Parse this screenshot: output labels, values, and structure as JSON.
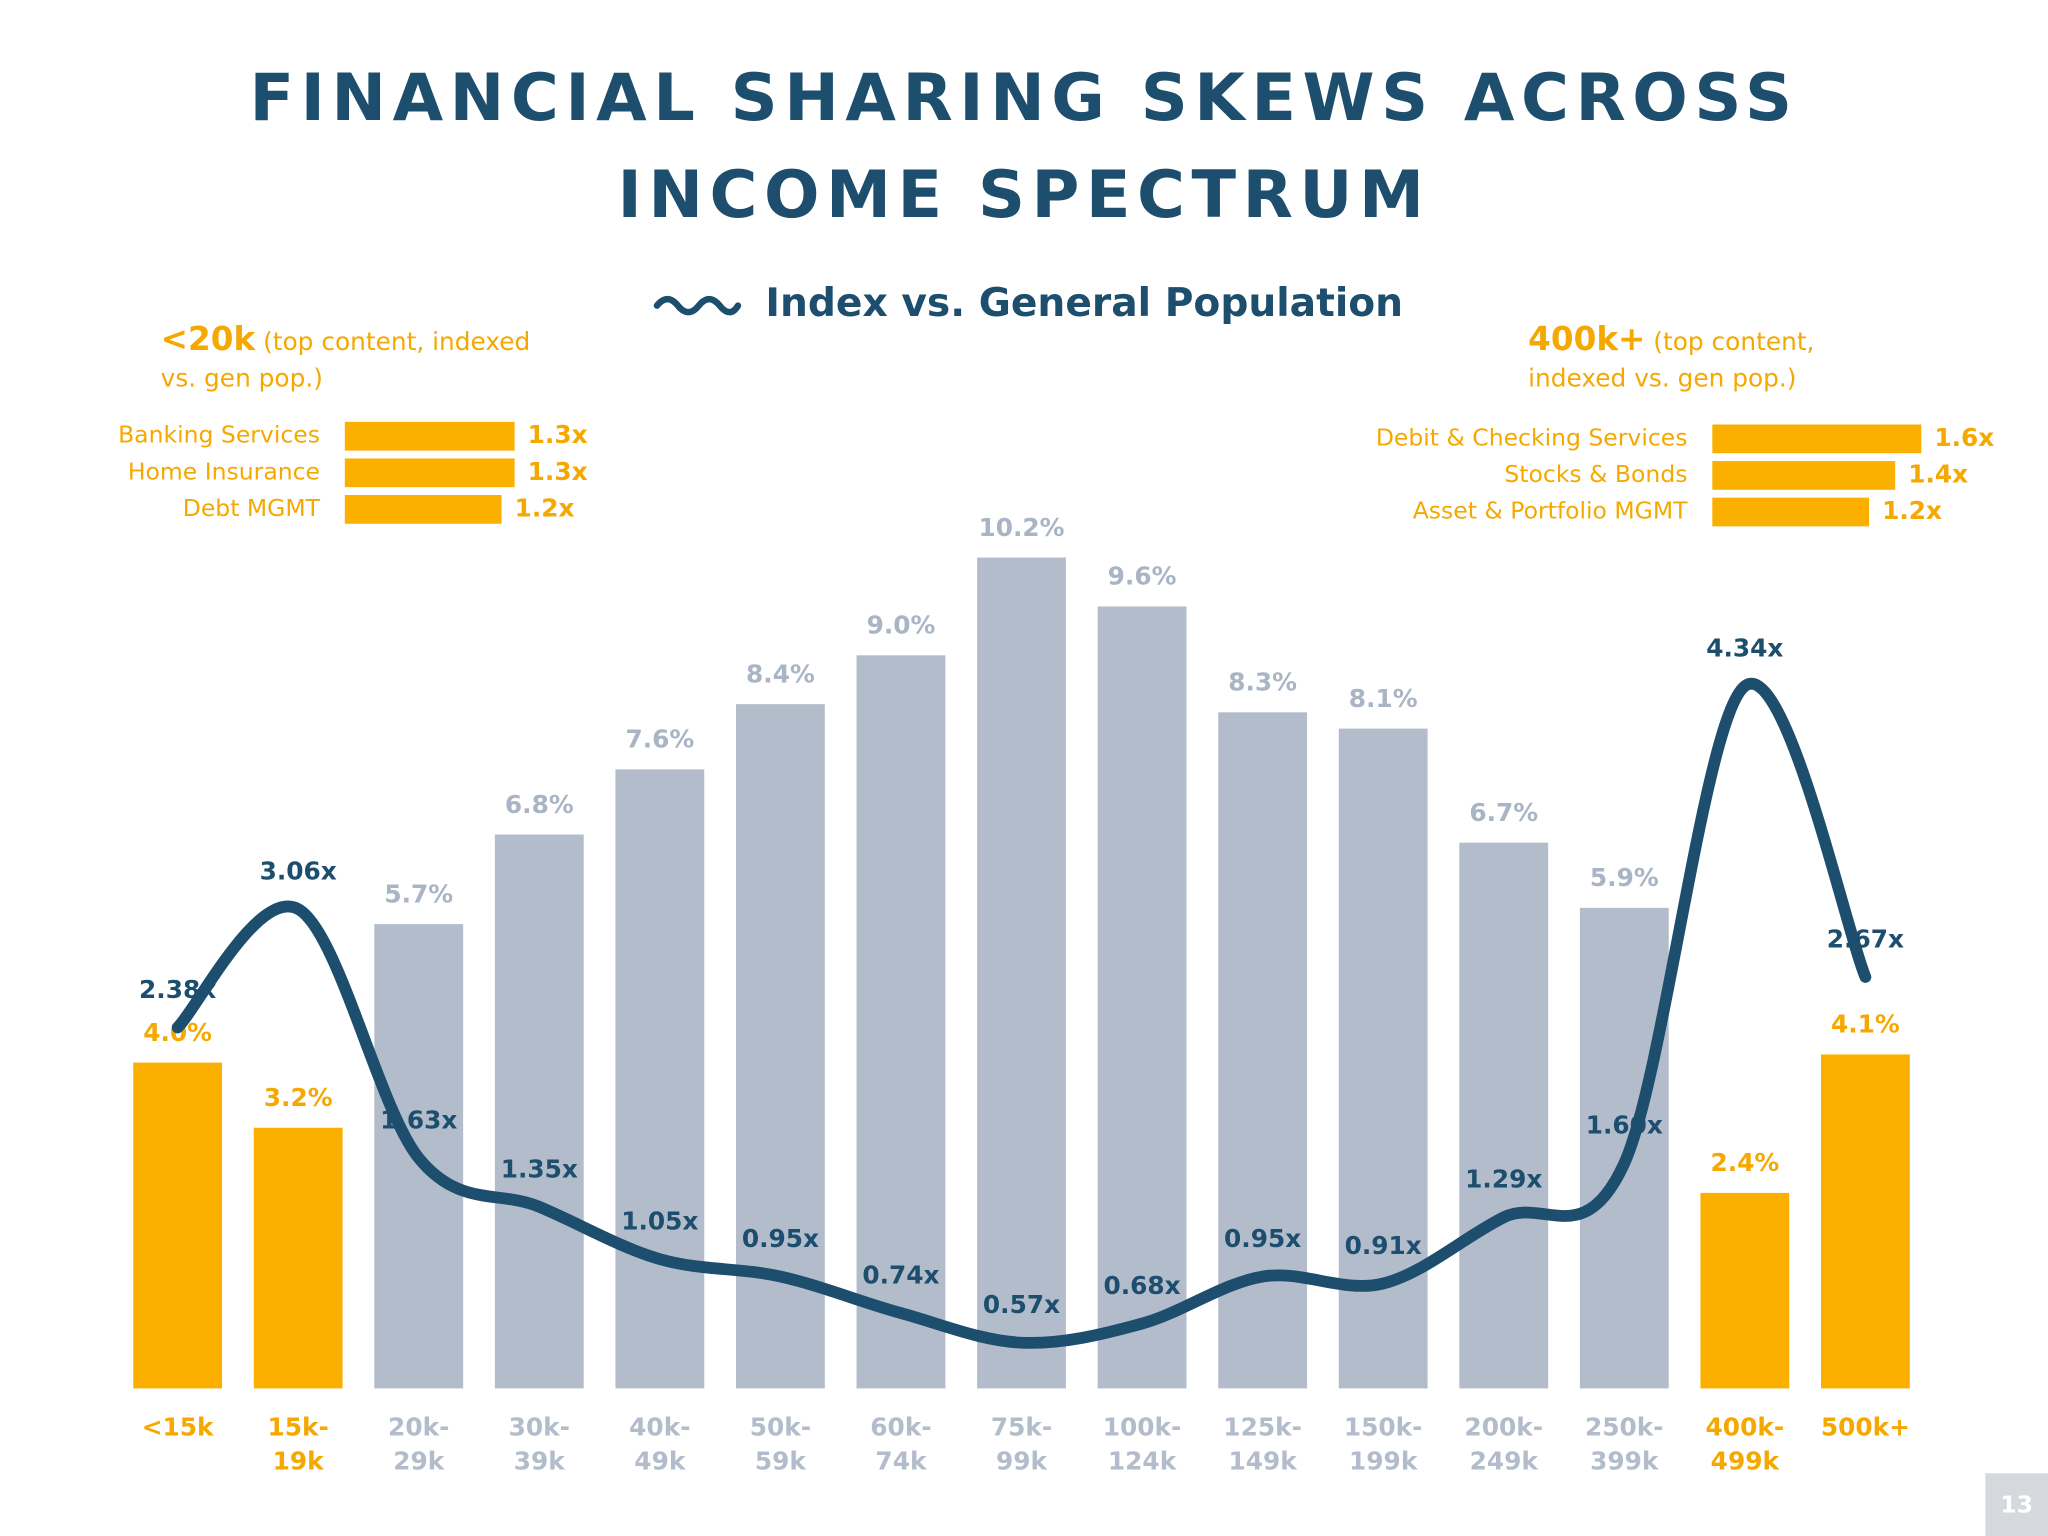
{
  "chart_data": [
    {
      "type": "bar",
      "title": "FINANCIAL SHARING SKEWS ACROSS INCOME SPECTRUM",
      "categories": [
        "<15k",
        "15k-19k",
        "20k-29k",
        "30k-39k",
        "40k-49k",
        "50k-59k",
        "60k-74k",
        "75k-99k",
        "100k-124k",
        "125k-149k",
        "150k-199k",
        "200k-249k",
        "250k-399k",
        "400k-499k",
        "500k+"
      ],
      "values": [
        4.0,
        3.2,
        5.7,
        6.8,
        7.6,
        8.4,
        9.0,
        10.2,
        9.6,
        8.3,
        8.1,
        6.7,
        5.9,
        2.4,
        4.1
      ],
      "value_labels": [
        "4.0%",
        "3.2%",
        "5.7%",
        "6.8%",
        "7.6%",
        "8.4%",
        "9.0%",
        "10.2%",
        "9.6%",
        "8.3%",
        "8.1%",
        "6.7%",
        "5.9%",
        "2.4%",
        "4.1%"
      ],
      "colors": [
        "#fbb000",
        "#fbb000",
        "#b2bccb",
        "#b2bccb",
        "#b2bccb",
        "#b2bccb",
        "#b2bccb",
        "#b2bccb",
        "#b2bccb",
        "#b2bccb",
        "#b2bccb",
        "#b2bccb",
        "#b2bccb",
        "#fbb000",
        "#fbb000"
      ],
      "ylim": [
        0,
        11
      ],
      "line": {
        "name": "Index vs. General Population",
        "color": "#1d4e6e",
        "values": [
          2.38,
          3.06,
          1.63,
          1.35,
          1.05,
          0.95,
          0.74,
          0.57,
          0.68,
          0.95,
          0.91,
          1.29,
          1.6,
          4.34,
          2.67
        ],
        "value_labels": [
          "2.38x",
          "3.06x",
          "1.63x",
          "1.35x",
          "1.05x",
          "0.95x",
          "0.74x",
          "0.57x",
          "0.68x",
          "0.95x",
          "0.91x",
          "1.29x",
          "1.60x",
          "4.34x",
          "2.67x"
        ],
        "y2lim": [
          0,
          4.8
        ]
      }
    },
    {
      "type": "hbar",
      "title": "<20k",
      "subtitle": "(top content, indexed vs. gen pop.)",
      "categories": [
        "Banking Services",
        "Home Insurance",
        "Debt MGMT"
      ],
      "values": [
        1.3,
        1.3,
        1.2
      ],
      "value_labels": [
        "1.3x",
        "1.3x",
        "1.2x"
      ],
      "color": "#fbb000"
    },
    {
      "type": "hbar",
      "title": "400k+",
      "subtitle": "(top content, indexed vs. gen pop.)",
      "categories": [
        "Debit & Checking Services",
        "Stocks & Bonds",
        "Asset & Portfolio MGMT"
      ],
      "values": [
        1.6,
        1.4,
        1.2
      ],
      "value_labels": [
        "1.6x",
        "1.4x",
        "1.2x"
      ],
      "color": "#fbb000"
    }
  ],
  "page_number": "13"
}
